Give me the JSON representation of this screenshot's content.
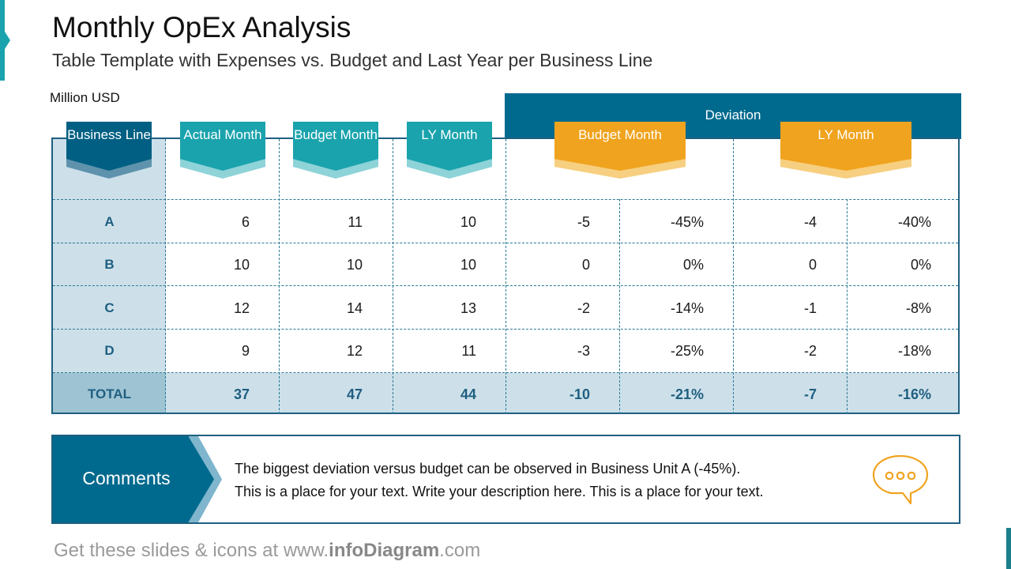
{
  "title": "Monthly OpEx Analysis",
  "subtitle": "Table Template with Expenses vs. Budget and Last Year per Business Line",
  "unit": "Million USD",
  "deviation_label": "Deviation",
  "headers": {
    "business_line": "Business Line",
    "actual_month": "Actual Month",
    "budget_month": "Budget Month",
    "ly_month": "LY Month",
    "dev_budget_month": "Budget Month",
    "dev_ly_month": "LY Month"
  },
  "rows": [
    {
      "label": "A",
      "actual": "6",
      "budget": "11",
      "ly": "10",
      "dev_b_abs": "-5",
      "dev_b_pct": "-45%",
      "dev_ly_abs": "-4",
      "dev_ly_pct": "-40%"
    },
    {
      "label": "B",
      "actual": "10",
      "budget": "10",
      "ly": "10",
      "dev_b_abs": "0",
      "dev_b_pct": "0%",
      "dev_ly_abs": "0",
      "dev_ly_pct": "0%"
    },
    {
      "label": "C",
      "actual": "12",
      "budget": "14",
      "ly": "13",
      "dev_b_abs": "-2",
      "dev_b_pct": "-14%",
      "dev_ly_abs": "-1",
      "dev_ly_pct": "-8%"
    },
    {
      "label": "D",
      "actual": "9",
      "budget": "12",
      "ly": "11",
      "dev_b_abs": "-3",
      "dev_b_pct": "-25%",
      "dev_ly_abs": "-2",
      "dev_ly_pct": "-18%"
    }
  ],
  "total": {
    "label": "TOTAL",
    "actual": "37",
    "budget": "47",
    "ly": "44",
    "dev_b_abs": "-10",
    "dev_b_pct": "-21%",
    "dev_ly_abs": "-7",
    "dev_ly_pct": "-16%"
  },
  "comments": {
    "label": "Comments",
    "line1": "The biggest deviation versus budget can be observed in Business Unit A (-45%).",
    "line2": "This is a place for your text. Write your description here. This is a place for your text.",
    "icon": "speech-bubble-icon"
  },
  "footer": {
    "prefix": "Get these slides & icons at www.",
    "brand": "infoDiagram",
    "suffix": ".com"
  },
  "colors": {
    "primary": "#006a8e",
    "teal": "#1aa3ad",
    "orange": "#f0a31e",
    "light_blue": "#cde0ea"
  }
}
